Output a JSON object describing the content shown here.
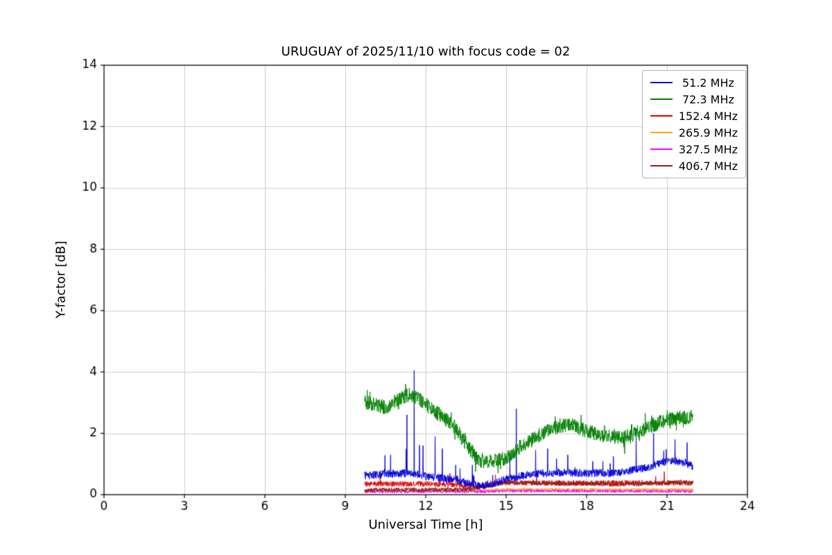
{
  "chart_data": {
    "type": "line",
    "title": "URUGUAY of 2025/11/10 with focus code = 02",
    "xlabel": "Universal Time [h]",
    "ylabel": "Y-factor [dB]",
    "xlim": [
      0,
      24
    ],
    "ylim": [
      0,
      14
    ],
    "xticks": [
      0,
      3,
      6,
      9,
      12,
      15,
      18,
      21,
      24
    ],
    "yticks": [
      0,
      2,
      4,
      6,
      8,
      10,
      12,
      14
    ],
    "grid": true,
    "grid_color": "#cccccc",
    "legend_position": "upper right",
    "series": [
      {
        "name": " 51.2 MHz",
        "color": "#0000dd",
        "x_range": [
          9.72,
          21.98
        ],
        "noise": 0.13,
        "spike_prob": 0.015,
        "spike_amp": 0.9,
        "keypoints": [
          [
            9.72,
            0.62
          ],
          [
            10.5,
            0.68
          ],
          [
            11.5,
            0.7
          ],
          [
            12.0,
            0.6
          ],
          [
            12.5,
            0.55
          ],
          [
            13.0,
            0.5
          ],
          [
            13.5,
            0.4
          ],
          [
            14.0,
            0.3
          ],
          [
            14.5,
            0.35
          ],
          [
            15.0,
            0.5
          ],
          [
            15.5,
            0.6
          ],
          [
            16.0,
            0.68
          ],
          [
            17.0,
            0.72
          ],
          [
            18.0,
            0.7
          ],
          [
            19.0,
            0.7
          ],
          [
            19.5,
            0.75
          ],
          [
            20.0,
            0.85
          ],
          [
            20.5,
            0.95
          ],
          [
            21.0,
            1.1
          ],
          [
            21.5,
            1.08
          ],
          [
            21.98,
            0.92
          ]
        ],
        "spikes": [
          [
            11.3,
            2.6
          ],
          [
            11.57,
            4.05
          ],
          [
            11.9,
            1.6
          ],
          [
            12.35,
            1.9
          ],
          [
            12.62,
            1.5
          ],
          [
            15.38,
            2.8
          ],
          [
            16.1,
            1.45
          ],
          [
            16.55,
            1.5
          ],
          [
            17.3,
            1.3
          ],
          [
            19.0,
            1.25
          ],
          [
            19.85,
            1.9
          ],
          [
            20.5,
            2.0
          ],
          [
            21.3,
            1.8
          ],
          [
            21.75,
            1.7
          ]
        ]
      },
      {
        "name": " 72.3 MHz",
        "color": "#008000",
        "x_range": [
          9.72,
          21.98
        ],
        "noise": 0.24,
        "burst_prob": 0.05,
        "burst_amp": 0.35,
        "keypoints": [
          [
            9.72,
            3.0
          ],
          [
            10.0,
            2.95
          ],
          [
            10.5,
            2.85
          ],
          [
            11.0,
            3.1
          ],
          [
            11.4,
            3.25
          ],
          [
            11.8,
            3.1
          ],
          [
            12.2,
            2.8
          ],
          [
            12.6,
            2.55
          ],
          [
            13.0,
            2.3
          ],
          [
            13.4,
            1.8
          ],
          [
            13.8,
            1.3
          ],
          [
            14.1,
            1.05
          ],
          [
            14.5,
            1.1
          ],
          [
            15.0,
            1.2
          ],
          [
            15.5,
            1.55
          ],
          [
            16.0,
            1.85
          ],
          [
            16.5,
            2.05
          ],
          [
            17.0,
            2.25
          ],
          [
            17.4,
            2.3
          ],
          [
            17.8,
            2.15
          ],
          [
            18.3,
            2.0
          ],
          [
            19.0,
            1.9
          ],
          [
            19.6,
            1.9
          ],
          [
            20.2,
            2.15
          ],
          [
            20.7,
            2.35
          ],
          [
            21.2,
            2.5
          ],
          [
            21.7,
            2.5
          ],
          [
            21.98,
            2.55
          ]
        ],
        "spikes": []
      },
      {
        "name": "152.4 MHz",
        "color": "#dd0000",
        "x_range": [
          9.72,
          21.98
        ],
        "noise": 0.09,
        "spike_prob": 0.008,
        "spike_amp": 0.35,
        "keypoints": [
          [
            9.72,
            0.35
          ],
          [
            12.0,
            0.35
          ],
          [
            13.5,
            0.3
          ],
          [
            14.2,
            0.3
          ],
          [
            15.0,
            0.4
          ],
          [
            16.0,
            0.38
          ],
          [
            18.0,
            0.38
          ],
          [
            20.0,
            0.38
          ],
          [
            21.98,
            0.38
          ]
        ],
        "spikes": [
          [
            10.3,
            0.75
          ],
          [
            12.9,
            0.7
          ],
          [
            14.6,
            0.65
          ],
          [
            20.9,
            0.75
          ]
        ]
      },
      {
        "name": "265.9 MHz",
        "color": "#ffa500",
        "x_range": [
          9.72,
          21.98
        ],
        "noise": 0.05,
        "keypoints": [
          [
            9.72,
            0.15
          ],
          [
            14.0,
            0.14
          ],
          [
            15.0,
            0.17
          ],
          [
            21.98,
            0.16
          ]
        ],
        "spikes": []
      },
      {
        "name": "327.5 MHz",
        "color": "#ff00ff",
        "x_range": [
          9.72,
          21.98
        ],
        "noise": 0.05,
        "keypoints": [
          [
            9.72,
            0.1
          ],
          [
            14.0,
            0.1
          ],
          [
            15.0,
            0.12
          ],
          [
            21.98,
            0.11
          ]
        ],
        "spikes": []
      },
      {
        "name": "406.7 MHz",
        "color": "#8b2222",
        "x_range": [
          9.72,
          21.98
        ],
        "noise": 0.07,
        "keypoints": [
          [
            9.72,
            0.15
          ],
          [
            13.5,
            0.17
          ],
          [
            14.2,
            0.25
          ],
          [
            14.8,
            0.38
          ],
          [
            15.2,
            0.42
          ],
          [
            15.8,
            0.38
          ],
          [
            17.0,
            0.35
          ],
          [
            18.0,
            0.36
          ],
          [
            19.0,
            0.33
          ],
          [
            20.0,
            0.35
          ],
          [
            21.0,
            0.38
          ],
          [
            21.6,
            0.42
          ],
          [
            21.98,
            0.38
          ]
        ],
        "spikes": []
      }
    ]
  }
}
